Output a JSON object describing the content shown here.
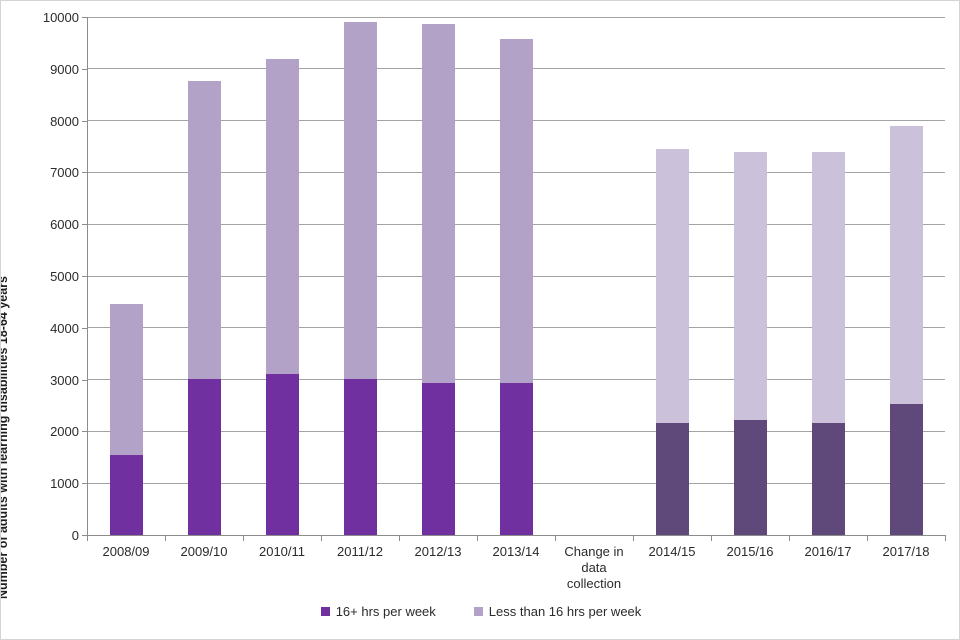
{
  "figure": {
    "background": "#ffffff",
    "border_color": "#d4d4d4"
  },
  "chart_data": {
    "type": "bar",
    "stacked": true,
    "title": "",
    "xlabel": "",
    "ylabel": "Number of adults with learning disabilities 18-64 years",
    "categories": [
      "2008/09",
      "2009/10",
      "2010/11",
      "2011/12",
      "2012/13",
      "2013/14",
      "Change in data collection",
      "2014/15",
      "2015/16",
      "2016/17",
      "2017/18"
    ],
    "series": [
      {
        "name": "16+ hrs per week",
        "values": [
          1550,
          3020,
          3110,
          3010,
          2930,
          2940,
          0,
          2170,
          2220,
          2170,
          2520
        ],
        "color": "#7030a0",
        "color_after_break": "#5f497a"
      },
      {
        "name": "Less than 16 hrs per week",
        "values": [
          2910,
          5740,
          6080,
          6900,
          6930,
          6630,
          0,
          5290,
          5180,
          5230,
          5370
        ],
        "color": "#b3a2c7",
        "color_after_break": "#ccc1da"
      }
    ],
    "totals": [
      4460,
      8760,
      9190,
      9910,
      9860,
      9570,
      0,
      7460,
      7400,
      7400,
      7890
    ],
    "break_category_index": 6,
    "ylim": [
      0,
      10000
    ],
    "yticks": [
      0,
      1000,
      2000,
      3000,
      4000,
      5000,
      6000,
      7000,
      8000,
      9000,
      10000
    ],
    "grid": "horizontal",
    "gridline_color": "#a3a3a3",
    "axis_color": "#8c8c8c",
    "text_color": "#2b2b2b",
    "legend_position": "bottom"
  }
}
